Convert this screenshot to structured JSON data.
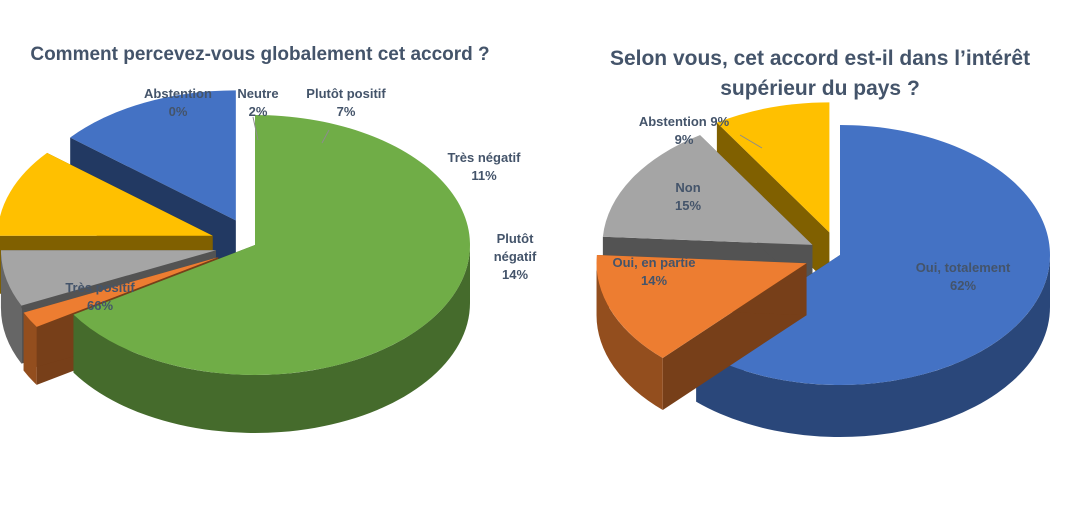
{
  "chart_data": [
    {
      "type": "pie",
      "title": "Comment percevez-vous globalement cet accord ?",
      "categories": [
        "Très positif",
        "Abstention",
        "Neutre",
        "Plutôt positif",
        "Très négatif",
        "Plutôt négatif"
      ],
      "values": [
        66,
        0,
        2,
        7,
        11,
        14
      ],
      "value_labels": [
        "66%",
        "0%",
        "2%",
        "7%",
        "11%",
        "14%"
      ],
      "colors": [
        "#70ad47",
        "#5b9bd5",
        "#ed7d31",
        "#a5a5a5",
        "#ffc000",
        "#4472c4"
      ],
      "style": "3d-exploded"
    },
    {
      "type": "pie",
      "title": "Selon vous, cet accord est-il dans l’intérêt supérieur du pays ?",
      "categories": [
        "Oui, totalement",
        "Oui, en partie",
        "Non",
        "Abstention 9%"
      ],
      "values": [
        62,
        14,
        15,
        9
      ],
      "value_labels": [
        "62%",
        "14%",
        "15%",
        "9%"
      ],
      "colors": [
        "#4472c4",
        "#ed7d31",
        "#a5a5a5",
        "#ffc000"
      ],
      "style": "3d-exploded"
    }
  ]
}
